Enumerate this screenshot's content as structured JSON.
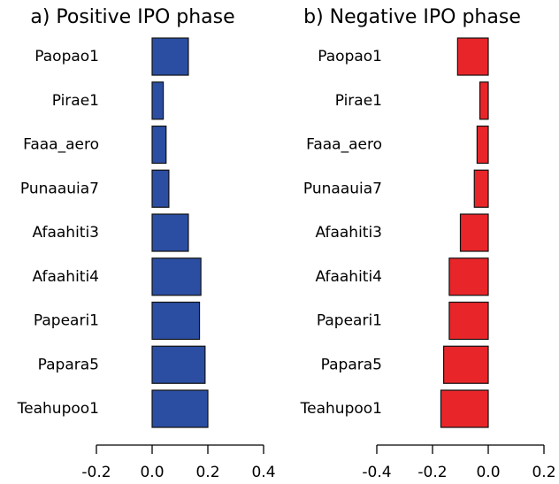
{
  "chart_data": [
    {
      "type": "barh",
      "title": "a) Positive IPO phase",
      "categories": [
        "Paopao1",
        "Pirae1",
        "Faaa_aero",
        "Punaauia7",
        "Afaahiti3",
        "Afaahiti4",
        "Papeari1",
        "Papara5",
        "Teahupoo1"
      ],
      "values": [
        0.13,
        0.04,
        0.05,
        0.06,
        0.13,
        0.175,
        0.17,
        0.19,
        0.2
      ],
      "color": "#2b4ea2",
      "xlim": [
        -0.2,
        0.4
      ],
      "xticks": [
        -0.2,
        {
          "value": 0,
          "label": "0.0"
        },
        0.2,
        0.4
      ]
    },
    {
      "type": "barh",
      "title": "b) Negative IPO phase",
      "categories": [
        "Paopao1",
        "Pirae1",
        "Faaa_aero",
        "Punaauia7",
        "Afaahiti3",
        "Afaahiti4",
        "Papeari1",
        "Papara5",
        "Teahupoo1"
      ],
      "values": [
        -0.11,
        -0.03,
        -0.04,
        -0.05,
        -0.1,
        -0.14,
        -0.14,
        -0.16,
        -0.17
      ],
      "color": "#e8262a",
      "xlim": [
        -0.4,
        0.2
      ],
      "xticks": [
        -0.4,
        -0.2,
        {
          "value": 0,
          "label": "0.0"
        },
        0.2
      ]
    }
  ]
}
